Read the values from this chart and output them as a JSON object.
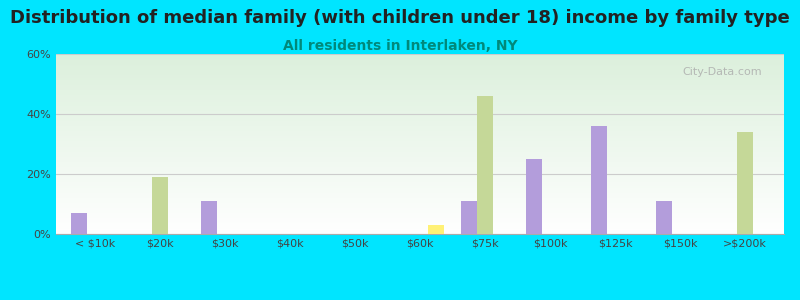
{
  "title": "Distribution of median family (with children under 18) income by family type",
  "subtitle": "All residents in Interlaken, NY",
  "categories": [
    "< $10k",
    "$20k",
    "$30k",
    "$40k",
    "$50k",
    "$60k",
    "$75k",
    "$100k",
    "$125k",
    "$150k",
    ">$200k"
  ],
  "married_couple": [
    7,
    0,
    11,
    0,
    0,
    0,
    11,
    25,
    36,
    11,
    0
  ],
  "male_no_wife": [
    0,
    19,
    0,
    0,
    0,
    0,
    46,
    0,
    0,
    0,
    34
  ],
  "female_no_husband": [
    0,
    0,
    0,
    0,
    0,
    3,
    0,
    0,
    0,
    0,
    0
  ],
  "married_color": "#b39ddb",
  "male_color": "#c5d898",
  "female_color": "#fff176",
  "ylim": [
    0,
    60
  ],
  "yticks": [
    0,
    20,
    40,
    60
  ],
  "background_color": "#00e5ff",
  "title_fontsize": 13,
  "subtitle_fontsize": 10,
  "subtitle_color": "#00897b",
  "bar_width": 0.25
}
